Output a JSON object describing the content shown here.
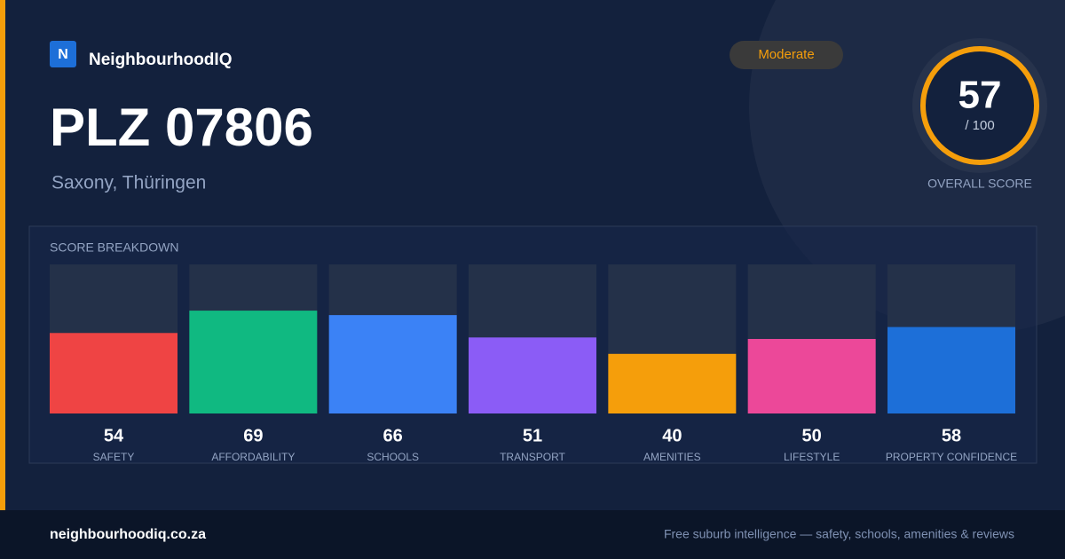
{
  "header": {
    "logo": "N",
    "brand": "NeighbourhoodIQ",
    "title": "PLZ 07806",
    "subtitle": "Saxony, Thüringen",
    "badge": "Moderate"
  },
  "score": {
    "value": 57,
    "out_of": "/ 100",
    "caption": "OVERALL SCORE"
  },
  "chart_data": {
    "type": "bar",
    "title": "SCORE BREAKDOWN",
    "categories": [
      "SAFETY",
      "AFFORDABILITY",
      "SCHOOLS",
      "TRANSPORT",
      "AMENITIES",
      "LIFESTYLE",
      "PROPERTY CONFIDENCE"
    ],
    "values": [
      54,
      69,
      66,
      51,
      40,
      50,
      58
    ],
    "colors": [
      "#ef4444",
      "#10b981",
      "#3b82f6",
      "#8b5cf6",
      "#f59e0b",
      "#ec4899",
      "#1d6fd8"
    ],
    "ylim": [
      0,
      100
    ]
  },
  "footer": {
    "site": "neighbourhoodiq.co.za",
    "tagline": "Free suburb intelligence — safety, schools, amenities & reviews"
  }
}
